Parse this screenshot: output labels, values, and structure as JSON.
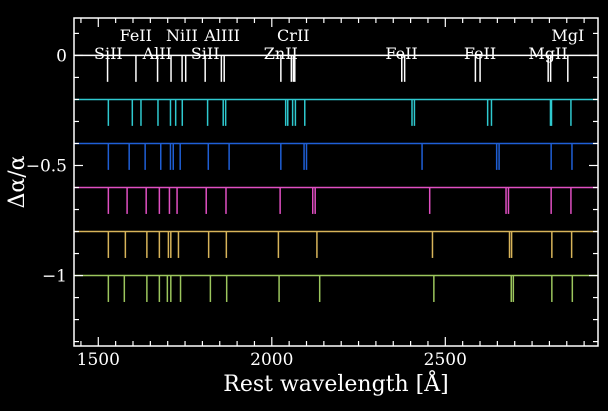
{
  "chart_data": {
    "type": "line",
    "xlabel": "Rest wavelength [Å]",
    "ylabel": "Δα/α",
    "xlim": [
      1430,
      2940
    ],
    "ylim": [
      -1.32,
      0.17
    ],
    "x_ticks": [
      1500,
      2000,
      2500
    ],
    "y_ticks": [
      0,
      -0.5,
      -1
    ],
    "x_tick_labels": [
      "1500",
      "2000",
      "2500"
    ],
    "y_tick_labels": [
      "0",
      "−0.5",
      "−1"
    ],
    "line_depth": 0.12,
    "ion_labels": [
      {
        "text": "SiII",
        "x": 1529,
        "row": 0
      },
      {
        "text": "FeII",
        "x": 1608,
        "row": 1
      },
      {
        "text": "AlII",
        "x": 1670,
        "row": 0
      },
      {
        "text": "NiII",
        "x": 1741,
        "row": 1
      },
      {
        "text": "SiII",
        "x": 1808,
        "row": 0
      },
      {
        "text": "AlIII",
        "x": 1857,
        "row": 1
      },
      {
        "text": "ZnII",
        "x": 2026,
        "row": 0
      },
      {
        "text": "CrII",
        "x": 2062,
        "row": 1
      },
      {
        "text": "FeII",
        "x": 2374,
        "row": 0
      },
      {
        "text": "FeII",
        "x": 2600,
        "row": 0
      },
      {
        "text": "MgII",
        "x": 2796,
        "row": 0
      },
      {
        "text": "MgI",
        "x": 2853,
        "row": 1
      }
    ],
    "series": [
      {
        "delta_alpha": 0,
        "color": "#ffffff",
        "lines": [
          1526.7,
          1608.5,
          1670.8,
          1709.6,
          1741.5,
          1751.9,
          1808.0,
          1854.7,
          1862.8,
          2026.1,
          2056.3,
          2062.2,
          2066.2,
          2374.5,
          2382.8,
          2586.7,
          2600.2,
          2796.4,
          2803.5,
          2853.0
        ]
      },
      {
        "delta_alpha": -0.2,
        "color": "#2fc9cf",
        "lines": [
          1529,
          1598,
          1623,
          1672,
          1708,
          1723,
          1742,
          1815,
          1860,
          1867,
          2040,
          2046,
          2060,
          2068,
          2095,
          2404,
          2411,
          2622,
          2633,
          2803,
          2806,
          2862
        ]
      },
      {
        "delta_alpha": -0.4,
        "color": "#1f5fd6",
        "lines": [
          1529,
          1589,
          1635,
          1680,
          1708,
          1716,
          1736,
          1817,
          1877,
          2026,
          2093,
          2100,
          2433,
          2648,
          2655,
          2805,
          2865
        ]
      },
      {
        "delta_alpha": -0.6,
        "color": "#e04fc2",
        "lines": [
          1529,
          1583,
          1638,
          1676,
          1705,
          1727,
          1811,
          1868,
          2024,
          2118,
          2125,
          2455,
          2675,
          2682,
          2805,
          2862
        ]
      },
      {
        "delta_alpha": -0.8,
        "color": "#d7b45a",
        "lines": [
          1529,
          1578,
          1640,
          1676,
          1702,
          1709,
          1731,
          1818,
          1869,
          2019,
          2130,
          2463,
          2685,
          2691,
          2807,
          2864
        ]
      },
      {
        "delta_alpha": -1.0,
        "color": "#9cc65d",
        "lines": [
          1529,
          1575,
          1640,
          1676,
          1699,
          1709,
          1737,
          1823,
          1870,
          2021,
          2138,
          2467,
          2690,
          2696,
          2807,
          2866
        ]
      }
    ]
  }
}
